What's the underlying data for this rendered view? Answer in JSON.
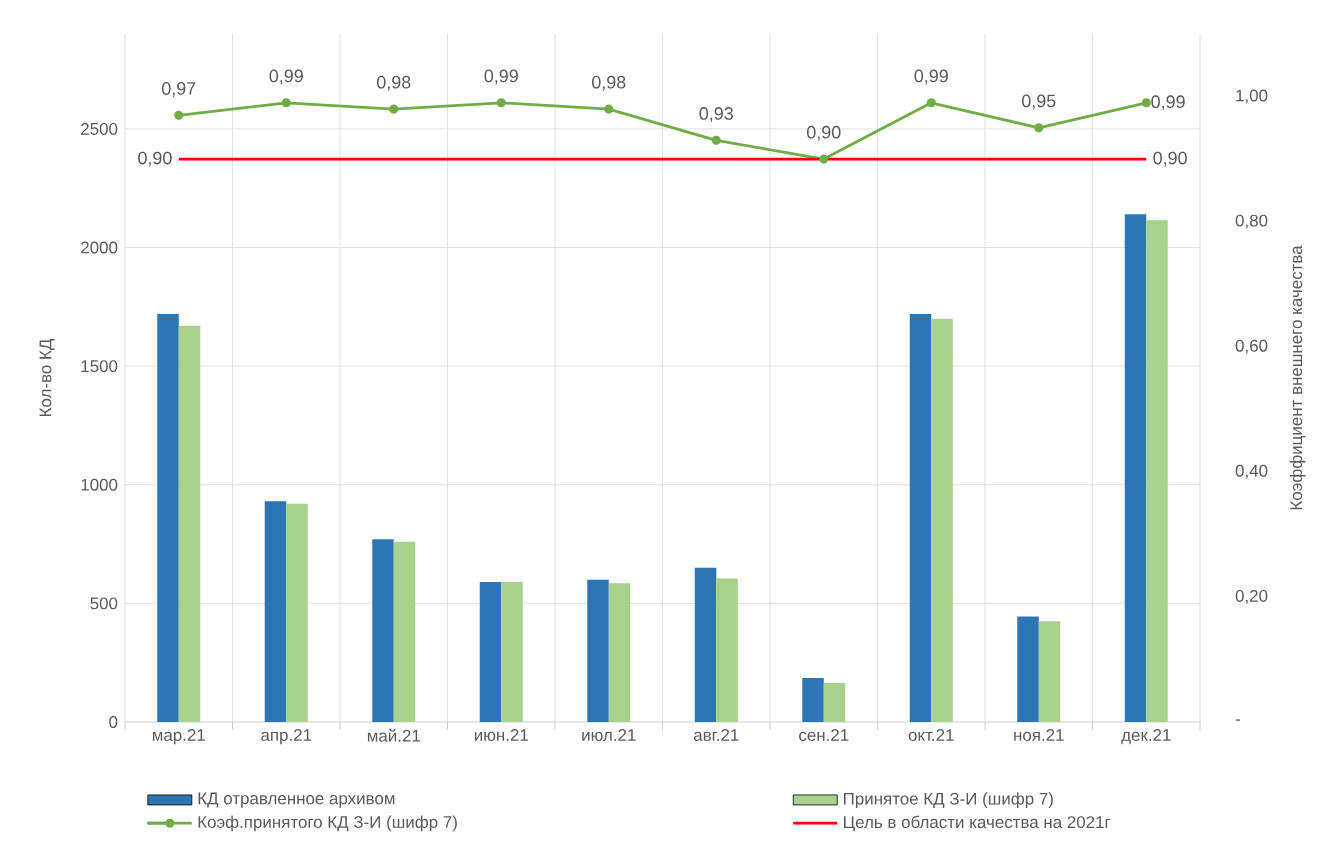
{
  "chart_data": {
    "type": "bar",
    "categories": [
      "мар.21",
      "апр.21",
      "май.21",
      "июн.21",
      "июл.21",
      "авг.21",
      "сен.21",
      "окт.21",
      "ноя.21",
      "дек.21"
    ],
    "ylabel": "Кол-во КД",
    "y2label": "Коэффициент внешнего качества",
    "ylim": [
      0,
      2900
    ],
    "yticks": [
      0,
      500,
      1000,
      1500,
      2000,
      2500
    ],
    "y2lim": [
      0,
      1.1
    ],
    "y2ticks": [
      {
        "value": 0,
        "label": "-"
      },
      {
        "value": 0.2,
        "label": "0,20"
      },
      {
        "value": 0.4,
        "label": "0,40"
      },
      {
        "value": 0.6,
        "label": "0,60"
      },
      {
        "value": 0.8,
        "label": "0,80"
      },
      {
        "value": 1.0,
        "label": "1,00"
      }
    ],
    "grid": true,
    "legend": "bottom",
    "series": [
      {
        "name": "КД отравленное архивом",
        "color": "#2e75b6",
        "values": [
          1720,
          930,
          770,
          590,
          600,
          650,
          185,
          1720,
          445,
          2140
        ]
      },
      {
        "name": "Принятое КД З-И (шифр 7)",
        "color": "#a9d18e",
        "values": [
          1670,
          920,
          760,
          590,
          585,
          605,
          165,
          1700,
          425,
          2115
        ]
      },
      {
        "name": "Коэф.принятого КД З-И (шифр 7)",
        "type": "line",
        "axis": "y2",
        "color": "#70ad47",
        "marker": "circle",
        "line_style": "solid",
        "values": [
          0.97,
          0.99,
          0.98,
          0.99,
          0.98,
          0.93,
          0.9,
          0.99,
          0.95,
          0.99
        ],
        "value_labels": [
          "0,97",
          "0,99",
          "0,98",
          "0,99",
          "0,98",
          "0,93",
          "0,90",
          "0,99",
          "0,95",
          "0,99"
        ]
      },
      {
        "name": "Цель в области качества на 2021г",
        "type": "line",
        "axis": "y2",
        "color": "#ff0000",
        "marker": "none",
        "line_style": "solid",
        "values": [
          0.9,
          0.9,
          0.9,
          0.9,
          0.9,
          0.9,
          0.9,
          0.9,
          0.9,
          0.9
        ],
        "value_labels": [
          "0,90",
          null,
          null,
          null,
          null,
          null,
          null,
          null,
          null,
          "0,90"
        ]
      }
    ]
  }
}
